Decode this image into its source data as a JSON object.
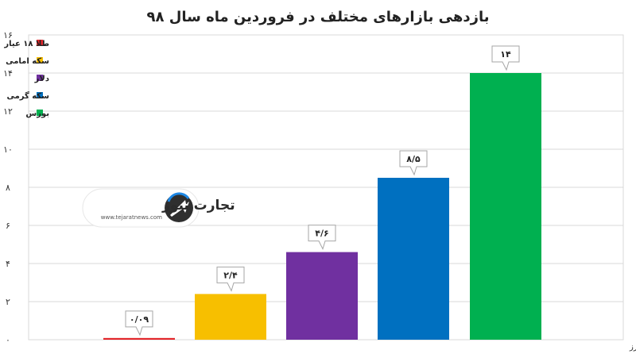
{
  "chart_data": {
    "type": "bar",
    "title": "بازدهی بازارهای مختلف در فروردین ماه سال ۹۸",
    "categories": [
      "طلا ۱۸ عیار",
      "سکه امامی",
      "دلار",
      "سکه گرمی",
      "بورس"
    ],
    "values": [
      0.09,
      2.4,
      4.6,
      8.5,
      14
    ],
    "data_labels": [
      "۰/۰۹",
      "۲/۴",
      "۴/۶",
      "۸/۵",
      "۱۴"
    ],
    "colors": [
      "#e3262b",
      "#f7bf00",
      "#7030a0",
      "#0070c0",
      "#00b050"
    ],
    "ylim": [
      0,
      16
    ],
    "yticks": [
      0,
      2,
      4,
      6,
      8,
      10,
      12,
      14,
      16
    ],
    "ytick_labels": [
      "۰",
      "۲",
      "۴",
      "۶",
      "۸",
      "۱۰",
      "۱۲",
      "۱۴",
      "۱۶"
    ],
    "grid": true,
    "legend_position": "top-left",
    "source": "منبع: شبکه اطلاع‌رسانی طلا، سکه و ارز"
  },
  "watermark": {
    "name": "تجارت نیوز",
    "url": "www.tejaratnews.com",
    "icon": "tejaratnews-logo-icon"
  }
}
